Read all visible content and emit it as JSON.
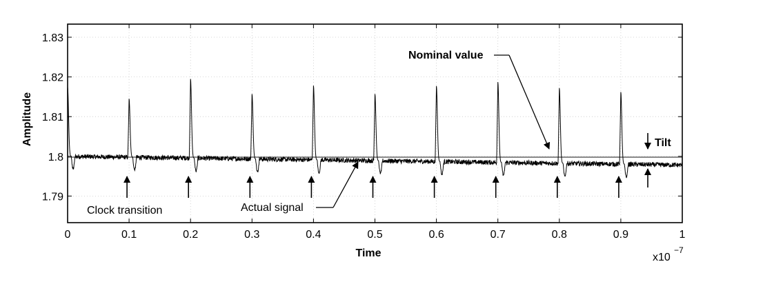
{
  "chart_data": {
    "type": "line",
    "title": "",
    "xlabel": "Time",
    "ylabel": "Amplitude",
    "x_multiplier_label": "x10",
    "x_multiplier_exp": "−7",
    "xlim": [
      0,
      1
    ],
    "ylim": [
      1.7833,
      1.8333
    ],
    "x_ticks": [
      0,
      0.1,
      0.2,
      0.3,
      0.4,
      0.5,
      0.6,
      0.7,
      0.8,
      0.9,
      1
    ],
    "x_tick_labels": [
      "0",
      "0.1",
      "0.2",
      "0.3",
      "0.4",
      "0.5",
      "0.6",
      "0.7",
      "0.8",
      "0.9",
      "1"
    ],
    "y_ticks": [
      1.79,
      1.8,
      1.81,
      1.82,
      1.83
    ],
    "y_tick_labels": [
      "1.79",
      "1.8",
      "1.81",
      "1.82",
      "1.83"
    ],
    "grid": true,
    "series": [
      {
        "role": "actual",
        "color": "#000000",
        "baseline_start": 1.8,
        "baseline_end": 1.7978,
        "noise_amplitude": 0.0006,
        "spikes": [
          {
            "x": 0.0,
            "peak": 1.8175
          },
          {
            "x": 0.1,
            "peak": 1.8145
          },
          {
            "x": 0.2,
            "peak": 1.8195
          },
          {
            "x": 0.3,
            "peak": 1.8157
          },
          {
            "x": 0.4,
            "peak": 1.8178
          },
          {
            "x": 0.5,
            "peak": 1.8157
          },
          {
            "x": 0.6,
            "peak": 1.8177
          },
          {
            "x": 0.7,
            "peak": 1.8187
          },
          {
            "x": 0.8,
            "peak": 1.8172
          },
          {
            "x": 0.9,
            "peak": 1.8162
          }
        ],
        "undershoot": 1.7968
      },
      {
        "role": "nominal",
        "color": "#888888",
        "y": 1.7998
      }
    ],
    "annotations": {
      "nominal_label": "Nominal value",
      "actual_label": "Actual signal",
      "clock_label": "Clock transition",
      "tilt_label": "Tilt",
      "clock_arrow_x": [
        0.1,
        0.2,
        0.3,
        0.4,
        0.5,
        0.6,
        0.7,
        0.8,
        0.9
      ]
    }
  }
}
